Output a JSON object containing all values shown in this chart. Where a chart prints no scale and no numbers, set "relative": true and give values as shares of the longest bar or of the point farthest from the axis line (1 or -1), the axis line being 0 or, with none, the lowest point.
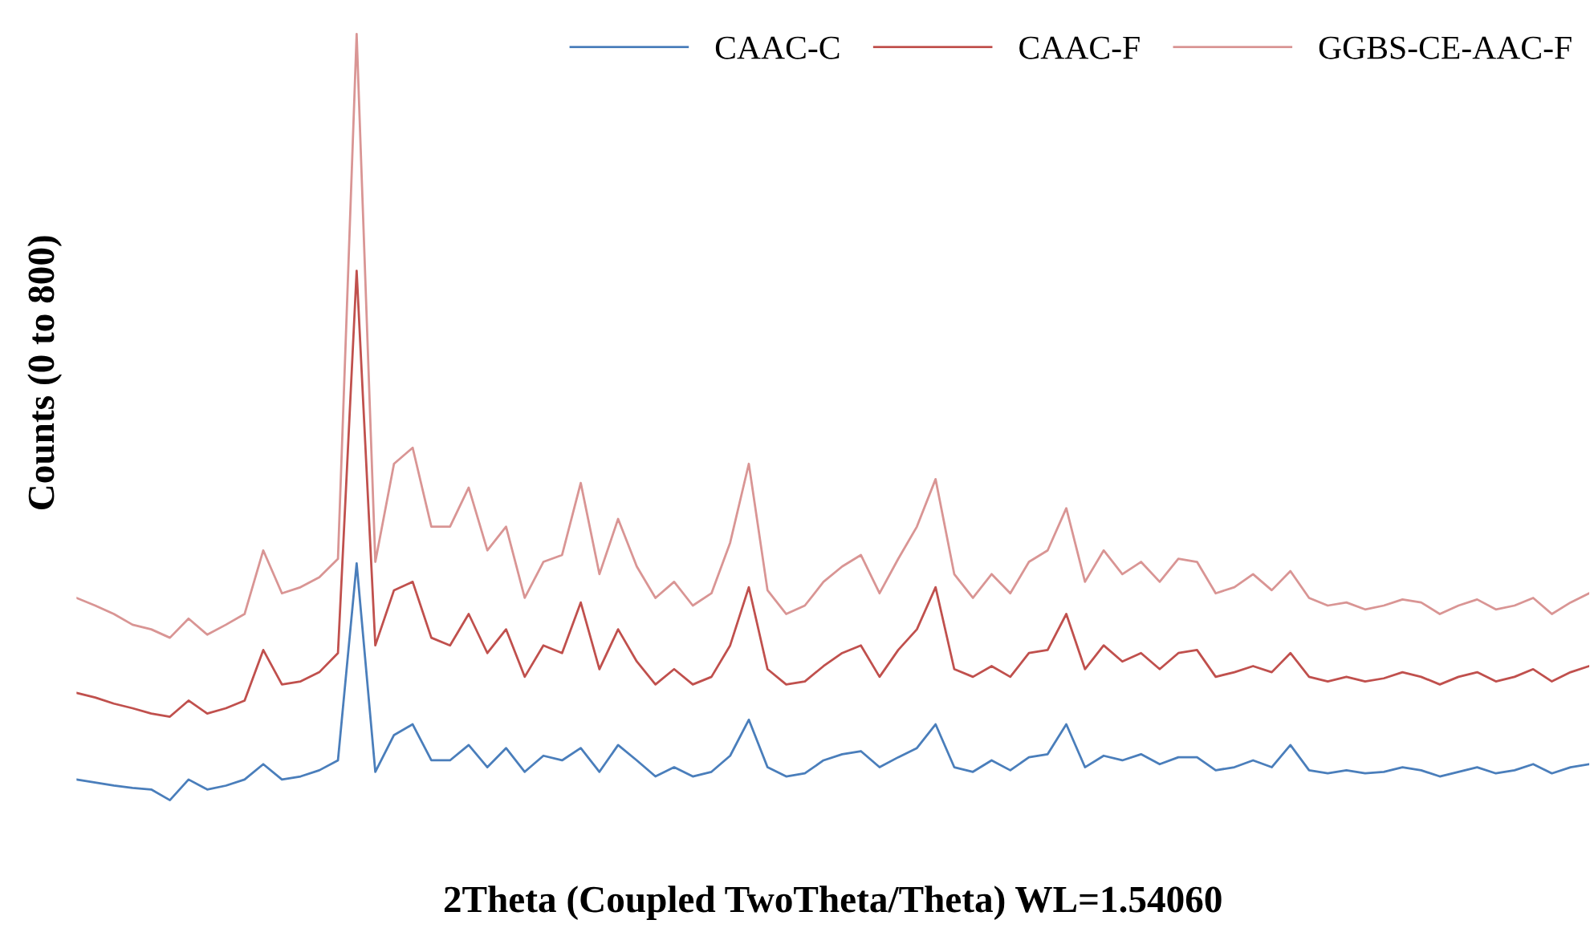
{
  "chart_data": {
    "type": "line",
    "relative": true,
    "xlabel": "2Theta (Coupled TwoTheta/Theta) WL=1.54060",
    "ylabel": "Counts (0 to 800)",
    "legend": "top right",
    "grid": false,
    "marker": "none",
    "line_style": "solid",
    "categories": [
      null,
      null,
      null,
      null,
      null,
      null,
      null,
      null,
      null,
      null,
      null,
      null,
      null,
      null,
      null,
      null,
      null,
      null,
      null,
      null,
      null,
      null,
      null,
      null,
      null,
      null,
      null,
      null,
      null,
      null,
      null,
      null,
      null,
      null,
      null,
      null,
      null,
      null,
      null,
      null,
      null,
      null,
      null,
      null,
      null,
      null,
      null,
      null,
      null,
      null,
      null,
      null,
      null,
      null,
      null,
      null,
      null,
      null,
      null,
      null,
      null,
      null,
      null,
      null,
      null,
      null,
      null,
      null,
      null,
      null,
      null,
      null,
      null,
      null,
      null,
      null,
      null,
      null,
      null,
      null,
      null,
      null
    ],
    "series": [
      {
        "name": "CAAC-C",
        "color": "#4a7ebb",
        "values": [
          0.027,
          0.023,
          0.019,
          0.016,
          0.014,
          0.0,
          0.027,
          0.014,
          0.019,
          0.027,
          0.047,
          0.027,
          0.031,
          0.039,
          0.052,
          0.309,
          0.037,
          0.085,
          0.099,
          0.052,
          0.052,
          0.072,
          0.043,
          0.068,
          0.037,
          0.058,
          0.052,
          0.068,
          0.037,
          0.072,
          0.052,
          0.031,
          0.043,
          0.031,
          0.037,
          0.058,
          0.105,
          0.043,
          0.031,
          0.035,
          0.052,
          0.06,
          0.064,
          0.043,
          0.056,
          0.068,
          0.099,
          0.043,
          0.037,
          0.052,
          0.039,
          0.056,
          0.06,
          0.099,
          0.043,
          0.058,
          0.052,
          0.06,
          0.047,
          0.056,
          0.056,
          0.039,
          0.043,
          0.052,
          0.043,
          0.072,
          0.039,
          0.035,
          0.039,
          0.035,
          0.037,
          0.043,
          0.039,
          0.031,
          0.037,
          0.043,
          0.035,
          0.039,
          0.047,
          0.035,
          0.043,
          0.047
        ]
      },
      {
        "name": "CAAC-F",
        "color": "#c0504d",
        "values": [
          0.14,
          0.134,
          0.126,
          0.12,
          0.113,
          0.109,
          0.13,
          0.113,
          0.12,
          0.13,
          0.196,
          0.151,
          0.155,
          0.167,
          0.192,
          0.691,
          0.202,
          0.274,
          0.285,
          0.212,
          0.202,
          0.243,
          0.192,
          0.223,
          0.161,
          0.202,
          0.192,
          0.258,
          0.171,
          0.223,
          0.181,
          0.151,
          0.171,
          0.151,
          0.161,
          0.202,
          0.278,
          0.171,
          0.151,
          0.155,
          0.175,
          0.192,
          0.202,
          0.161,
          0.196,
          0.223,
          0.278,
          0.171,
          0.161,
          0.175,
          0.161,
          0.192,
          0.196,
          0.243,
          0.171,
          0.202,
          0.181,
          0.192,
          0.171,
          0.192,
          0.196,
          0.161,
          0.167,
          0.175,
          0.167,
          0.192,
          0.161,
          0.155,
          0.161,
          0.155,
          0.159,
          0.167,
          0.161,
          0.151,
          0.161,
          0.167,
          0.155,
          0.161,
          0.171,
          0.155,
          0.167,
          0.175
        ]
      },
      {
        "name": "GGBS-CE-AAC-F",
        "color": "#d99594",
        "values": [
          0.264,
          0.254,
          0.243,
          0.229,
          0.223,
          0.212,
          0.237,
          0.216,
          0.229,
          0.243,
          0.326,
          0.27,
          0.278,
          0.291,
          0.315,
          1.0,
          0.311,
          0.439,
          0.46,
          0.357,
          0.357,
          0.408,
          0.326,
          0.357,
          0.264,
          0.311,
          0.32,
          0.414,
          0.295,
          0.367,
          0.305,
          0.264,
          0.285,
          0.254,
          0.27,
          0.336,
          0.439,
          0.274,
          0.243,
          0.254,
          0.285,
          0.305,
          0.32,
          0.27,
          0.315,
          0.357,
          0.419,
          0.295,
          0.264,
          0.295,
          0.27,
          0.311,
          0.326,
          0.381,
          0.285,
          0.326,
          0.295,
          0.311,
          0.285,
          0.315,
          0.311,
          0.27,
          0.278,
          0.295,
          0.274,
          0.299,
          0.264,
          0.254,
          0.258,
          0.249,
          0.254,
          0.262,
          0.258,
          0.243,
          0.254,
          0.262,
          0.249,
          0.254,
          0.264,
          0.243,
          0.258,
          0.27
        ]
      }
    ]
  }
}
